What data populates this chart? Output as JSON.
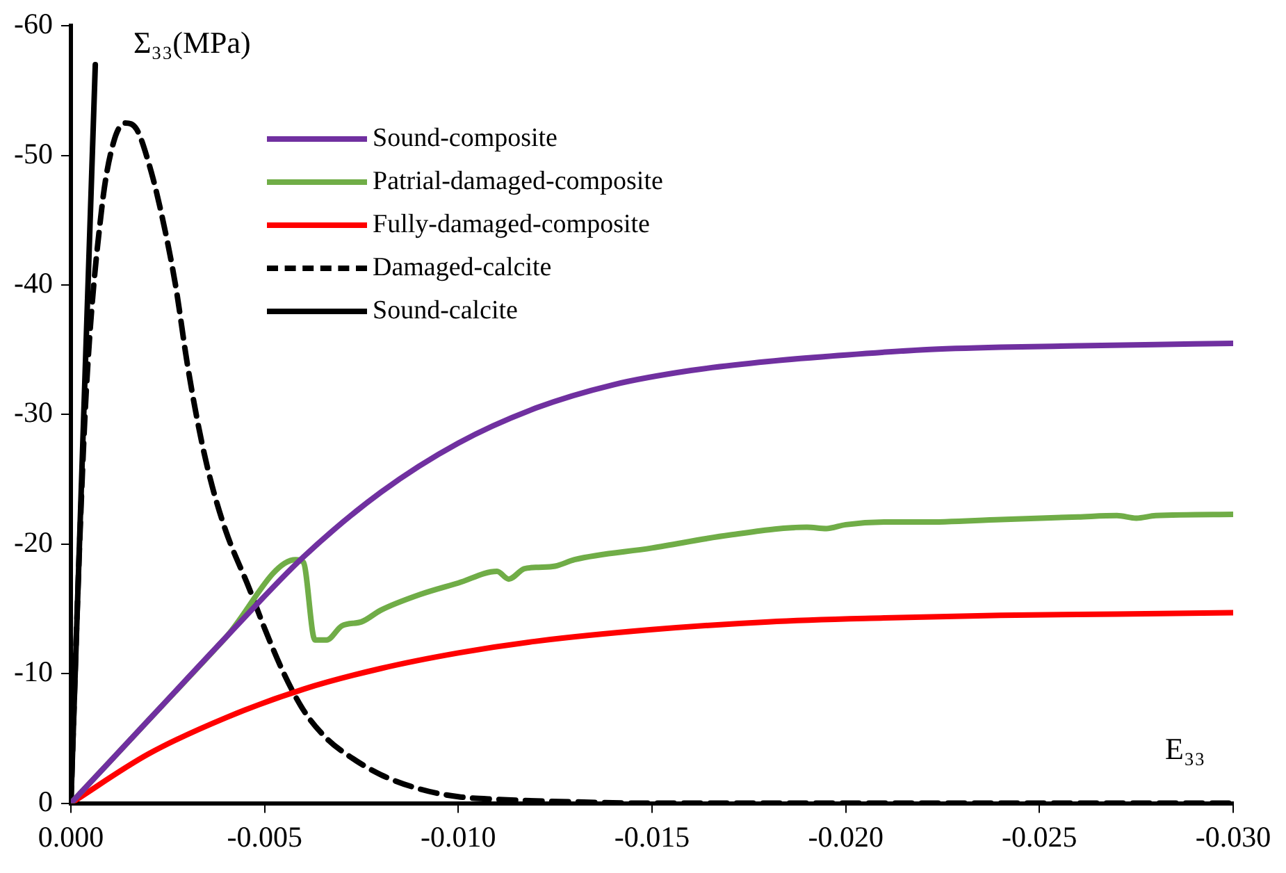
{
  "chart_data": {
    "type": "line",
    "xlabel": "E₃₃",
    "ylabel": "Σ₃₃(MPa)",
    "xlim": [
      0,
      -0.03
    ],
    "ylim": [
      0,
      -60
    ],
    "xticks": [
      {
        "value": 0,
        "label": "0.000"
      },
      {
        "value": -0.005,
        "label": "-0.005"
      },
      {
        "value": -0.01,
        "label": "-0.010"
      },
      {
        "value": -0.015,
        "label": "-0.015"
      },
      {
        "value": -0.02,
        "label": "-0.020"
      },
      {
        "value": -0.025,
        "label": "-0.025"
      },
      {
        "value": -0.03,
        "label": "-0.030"
      }
    ],
    "yticks": [
      0,
      -10,
      -20,
      -30,
      -40,
      -50,
      -60
    ],
    "grid": false,
    "legend": "top left",
    "marker": "none",
    "series": [
      {
        "name": "Sound-composite",
        "color": "#7030a0",
        "line_style": "solid",
        "x": [
          0,
          -0.002,
          -0.004,
          -0.006,
          -0.008,
          -0.01,
          -0.012,
          -0.014,
          -0.016,
          -0.018,
          -0.02,
          -0.022,
          -0.024,
          -0.026,
          -0.028,
          -0.03
        ],
        "values": [
          0,
          -6.4,
          -12.8,
          -19,
          -24,
          -27.8,
          -30.5,
          -32.3,
          -33.4,
          -34.1,
          -34.6,
          -35,
          -35.2,
          -35.3,
          -35.4,
          -35.5
        ]
      },
      {
        "name": "Patrial-damaged-composite",
        "color": "#70ad47",
        "line_style": "solid",
        "x": [
          0,
          -0.002,
          -0.004,
          -0.0058,
          -0.006,
          -0.0063,
          -0.0066,
          -0.007,
          -0.0075,
          -0.008,
          -0.009,
          -0.01,
          -0.011,
          -0.0113,
          -0.0117,
          -0.012,
          -0.0125,
          -0.013,
          -0.015,
          -0.017,
          -0.019,
          -0.0195,
          -0.02,
          -0.021,
          -0.022,
          -0.024,
          -0.026,
          -0.027,
          -0.0275,
          -0.028,
          -0.03
        ],
        "values": [
          0,
          -6.4,
          -12.8,
          -18.8,
          -18.6,
          -12.6,
          -12.6,
          -13.7,
          -14,
          -14.9,
          -16.1,
          -17,
          -17.9,
          -17.3,
          -18.1,
          -18.2,
          -18.3,
          -18.8,
          -19.7,
          -20.7,
          -21.3,
          -21.2,
          -21.5,
          -21.7,
          -21.7,
          -21.9,
          -22.1,
          -22.2,
          -22,
          -22.2,
          -22.3
        ]
      },
      {
        "name": "Fully-damaged-composite",
        "color": "#ff0000",
        "line_style": "solid",
        "x": [
          0,
          -0.002,
          -0.004,
          -0.006,
          -0.008,
          -0.01,
          -0.012,
          -0.015,
          -0.018,
          -0.021,
          -0.024,
          -0.027,
          -0.03
        ],
        "values": [
          0,
          -3.8,
          -6.6,
          -8.8,
          -10.4,
          -11.6,
          -12.5,
          -13.4,
          -14,
          -14.3,
          -14.5,
          -14.6,
          -14.7
        ]
      },
      {
        "name": "Damaged-calcite",
        "color": "#000000",
        "line_style": "dashed",
        "x": [
          0,
          -0.0002,
          -0.0004,
          -0.0008,
          -0.0011,
          -0.0014,
          -0.0017,
          -0.002,
          -0.0023,
          -0.0027,
          -0.003,
          -0.0033,
          -0.0036,
          -0.004,
          -0.0046,
          -0.005,
          -0.0055,
          -0.006,
          -0.0066,
          -0.0072,
          -0.008,
          -0.009,
          -0.01,
          -0.011,
          -0.013,
          -0.015,
          -0.03
        ],
        "values": [
          0,
          -18,
          -32,
          -46,
          -51,
          -52.5,
          -52,
          -49.5,
          -46,
          -40,
          -34,
          -29,
          -25,
          -21,
          -16.6,
          -13.5,
          -10,
          -7.2,
          -5,
          -3.6,
          -2.2,
          -1.1,
          -0.5,
          -0.3,
          -0.1,
          0,
          0
        ]
      },
      {
        "name": "Sound-calcite",
        "color": "#000000",
        "line_style": "solid",
        "x": [
          0,
          -0.00063
        ],
        "values": [
          0,
          -57
        ]
      }
    ]
  }
}
